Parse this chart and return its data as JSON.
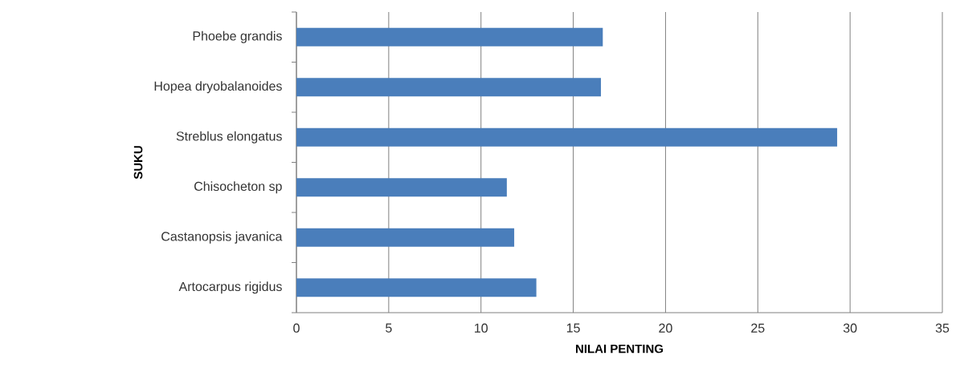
{
  "chart_data": {
    "type": "bar",
    "orientation": "horizontal",
    "xlabel": "NILAI PENTING",
    "ylabel": "SUKU",
    "categories": [
      "Phoebe grandis",
      "Hopea dryobalanoides",
      "Streblus elongatus",
      "Chisocheton sp",
      "Castanopsis javanica",
      "Artocarpus rigidus"
    ],
    "values": [
      16.6,
      16.5,
      29.3,
      11.4,
      11.8,
      13.0
    ],
    "color": "#4a7ebb",
    "xlim": [
      0,
      35
    ],
    "xticks": [
      0,
      5,
      10,
      15,
      20,
      25,
      30,
      35
    ],
    "grid": "x"
  }
}
